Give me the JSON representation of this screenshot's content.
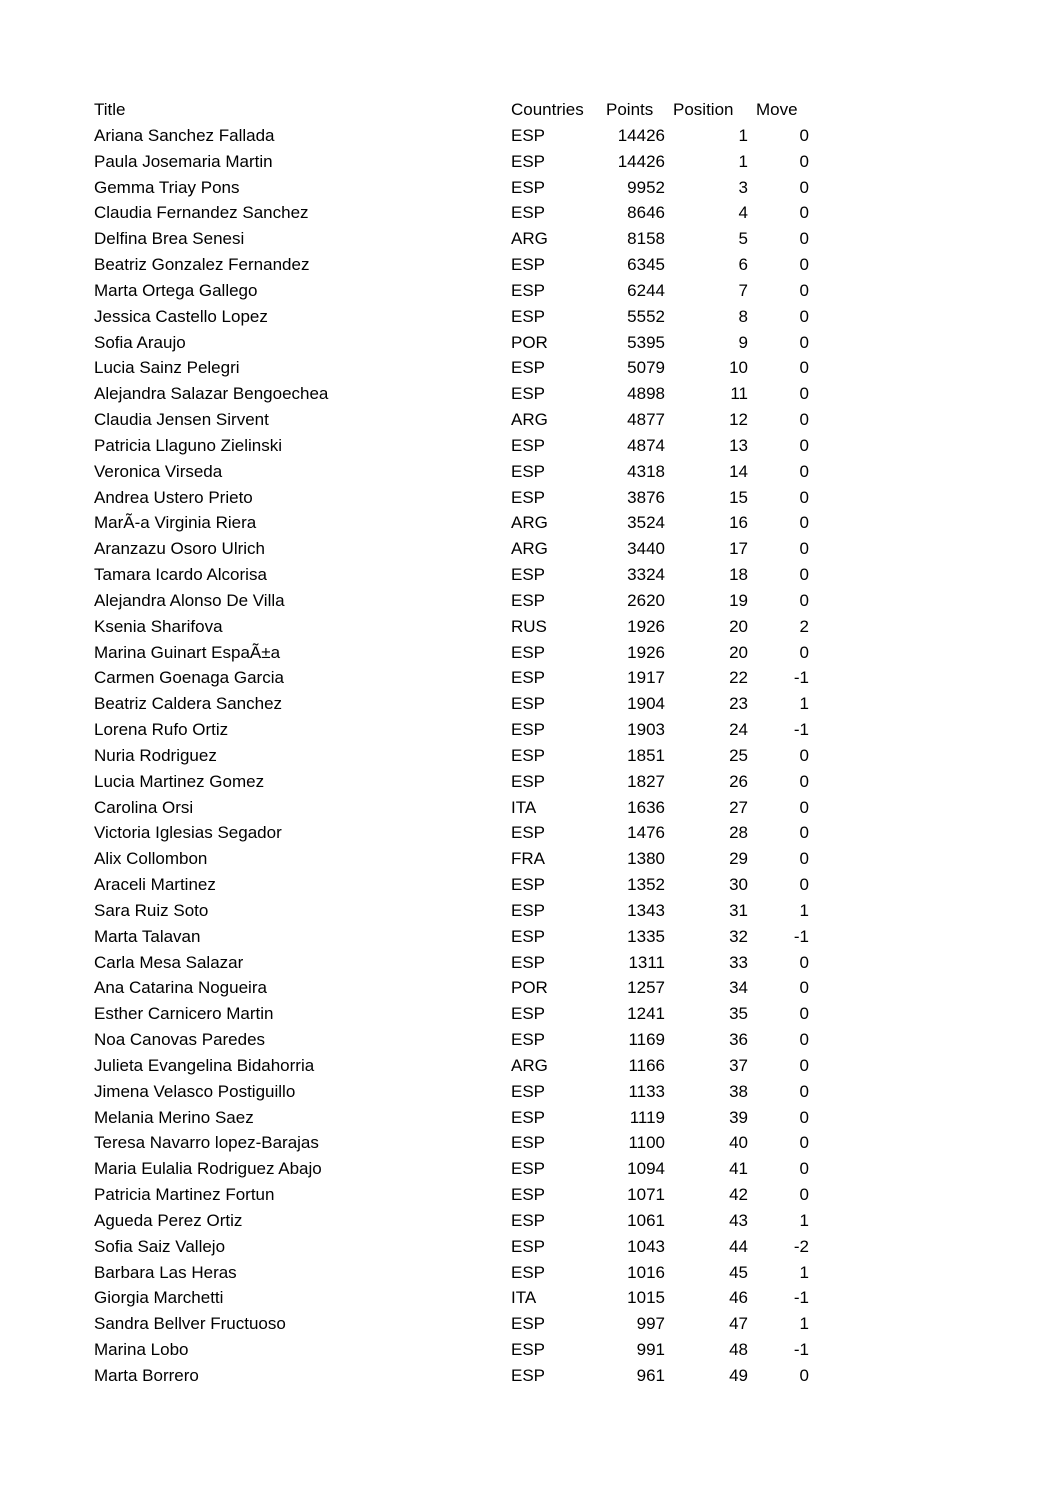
{
  "table": {
    "headers": {
      "title": "Title",
      "countries": "Countries",
      "points": "Points",
      "position": "Position",
      "move": "Move"
    },
    "rows": [
      {
        "name": "Ariana Sanchez Fallada",
        "country": "ESP",
        "points": "14426",
        "position": "1",
        "move": "0"
      },
      {
        "name": "Paula Josemaria Martin",
        "country": "ESP",
        "points": "14426",
        "position": "1",
        "move": "0"
      },
      {
        "name": "Gemma Triay Pons",
        "country": "ESP",
        "points": "9952",
        "position": "3",
        "move": "0"
      },
      {
        "name": "Claudia Fernandez Sanchez",
        "country": "ESP",
        "points": "8646",
        "position": "4",
        "move": "0"
      },
      {
        "name": "Delfina Brea Senesi",
        "country": "ARG",
        "points": "8158",
        "position": "5",
        "move": "0"
      },
      {
        "name": "Beatriz Gonzalez Fernandez",
        "country": "ESP",
        "points": "6345",
        "position": "6",
        "move": "0"
      },
      {
        "name": "Marta Ortega Gallego",
        "country": "ESP",
        "points": "6244",
        "position": "7",
        "move": "0"
      },
      {
        "name": "Jessica Castello Lopez",
        "country": "ESP",
        "points": "5552",
        "position": "8",
        "move": "0"
      },
      {
        "name": "Sofia Araujo",
        "country": "POR",
        "points": "5395",
        "position": "9",
        "move": "0"
      },
      {
        "name": "Lucia Sainz Pelegri",
        "country": "ESP",
        "points": "5079",
        "position": "10",
        "move": "0"
      },
      {
        "name": "Alejandra Salazar Bengoechea",
        "country": "ESP",
        "points": "4898",
        "position": "11",
        "move": "0"
      },
      {
        "name": "Claudia Jensen Sirvent",
        "country": "ARG",
        "points": "4877",
        "position": "12",
        "move": "0"
      },
      {
        "name": "Patricia Llaguno Zielinski",
        "country": "ESP",
        "points": "4874",
        "position": "13",
        "move": "0"
      },
      {
        "name": "Veronica Virseda",
        "country": "ESP",
        "points": "4318",
        "position": "14",
        "move": "0"
      },
      {
        "name": "Andrea Ustero Prieto",
        "country": "ESP",
        "points": "3876",
        "position": "15",
        "move": "0"
      },
      {
        "name": "MarÃ-a Virginia Riera",
        "country": "ARG",
        "points": "3524",
        "position": "16",
        "move": "0"
      },
      {
        "name": "Aranzazu Osoro Ulrich",
        "country": "ARG",
        "points": "3440",
        "position": "17",
        "move": "0"
      },
      {
        "name": "Tamara Icardo Alcorisa",
        "country": "ESP",
        "points": "3324",
        "position": "18",
        "move": "0"
      },
      {
        "name": "Alejandra Alonso De Villa",
        "country": "ESP",
        "points": "2620",
        "position": "19",
        "move": "0"
      },
      {
        "name": "Ksenia Sharifova",
        "country": "RUS",
        "points": "1926",
        "position": "20",
        "move": "2"
      },
      {
        "name": "Marina Guinart EspaÃ±a",
        "country": "ESP",
        "points": "1926",
        "position": "20",
        "move": "0"
      },
      {
        "name": "Carmen Goenaga Garcia",
        "country": "ESP",
        "points": "1917",
        "position": "22",
        "move": "-1"
      },
      {
        "name": "Beatriz Caldera Sanchez",
        "country": "ESP",
        "points": "1904",
        "position": "23",
        "move": "1"
      },
      {
        "name": "Lorena Rufo Ortiz",
        "country": "ESP",
        "points": "1903",
        "position": "24",
        "move": "-1"
      },
      {
        "name": "Nuria Rodriguez",
        "country": "ESP",
        "points": "1851",
        "position": "25",
        "move": "0"
      },
      {
        "name": "Lucia Martinez Gomez",
        "country": "ESP",
        "points": "1827",
        "position": "26",
        "move": "0"
      },
      {
        "name": "Carolina Orsi",
        "country": "ITA",
        "points": "1636",
        "position": "27",
        "move": "0"
      },
      {
        "name": "Victoria Iglesias Segador",
        "country": "ESP",
        "points": "1476",
        "position": "28",
        "move": "0"
      },
      {
        "name": "Alix Collombon",
        "country": "FRA",
        "points": "1380",
        "position": "29",
        "move": "0"
      },
      {
        "name": "Araceli Martinez",
        "country": "ESP",
        "points": "1352",
        "position": "30",
        "move": "0"
      },
      {
        "name": "Sara Ruiz Soto",
        "country": "ESP",
        "points": "1343",
        "position": "31",
        "move": "1"
      },
      {
        "name": "Marta Talavan",
        "country": "ESP",
        "points": "1335",
        "position": "32",
        "move": "-1"
      },
      {
        "name": "Carla Mesa Salazar",
        "country": "ESP",
        "points": "1311",
        "position": "33",
        "move": "0"
      },
      {
        "name": "Ana Catarina Nogueira",
        "country": "POR",
        "points": "1257",
        "position": "34",
        "move": "0"
      },
      {
        "name": "Esther Carnicero Martin",
        "country": "ESP",
        "points": "1241",
        "position": "35",
        "move": "0"
      },
      {
        "name": "Noa Canovas Paredes",
        "country": "ESP",
        "points": "1169",
        "position": "36",
        "move": "0"
      },
      {
        "name": "Julieta Evangelina Bidahorria",
        "country": "ARG",
        "points": "1166",
        "position": "37",
        "move": "0"
      },
      {
        "name": "Jimena Velasco Postiguillo",
        "country": "ESP",
        "points": "1133",
        "position": "38",
        "move": "0"
      },
      {
        "name": "Melania Merino Saez",
        "country": "ESP",
        "points": "1119",
        "position": "39",
        "move": "0"
      },
      {
        "name": "Teresa Navarro lopez-Barajas",
        "country": "ESP",
        "points": "1100",
        "position": "40",
        "move": "0"
      },
      {
        "name": "Maria Eulalia Rodriguez Abajo",
        "country": "ESP",
        "points": "1094",
        "position": "41",
        "move": "0"
      },
      {
        "name": "Patricia Martinez Fortun",
        "country": "ESP",
        "points": "1071",
        "position": "42",
        "move": "0"
      },
      {
        "name": "Agueda Perez Ortiz",
        "country": "ESP",
        "points": "1061",
        "position": "43",
        "move": "1"
      },
      {
        "name": "Sofia Saiz Vallejo",
        "country": "ESP",
        "points": "1043",
        "position": "44",
        "move": "-2"
      },
      {
        "name": "Barbara Las Heras",
        "country": "ESP",
        "points": "1016",
        "position": "45",
        "move": "1"
      },
      {
        "name": "Giorgia Marchetti",
        "country": "ITA",
        "points": "1015",
        "position": "46",
        "move": "-1"
      },
      {
        "name": "Sandra Bellver Fructuoso",
        "country": "ESP",
        "points": "997",
        "position": "47",
        "move": "1"
      },
      {
        "name": "Marina Lobo",
        "country": "ESP",
        "points": "991",
        "position": "48",
        "move": "-1"
      },
      {
        "name": "Marta Borrero",
        "country": "ESP",
        "points": "961",
        "position": "49",
        "move": "0"
      }
    ]
  }
}
